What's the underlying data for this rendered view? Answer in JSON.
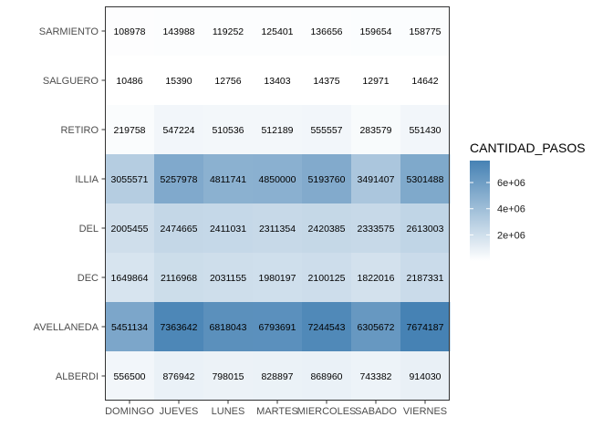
{
  "chart_data": {
    "type": "heatmap",
    "x_categories": [
      "DOMINGO",
      "JUEVES",
      "LUNES",
      "MARTES",
      "MIERCOLES",
      "SABADO",
      "VIERNES"
    ],
    "y_categories": [
      "SARMIENTO",
      "SALGUERO",
      "RETIRO",
      "ILLIA",
      "DEL",
      "DEC",
      "AVELLANEDA",
      "ALBERDI"
    ],
    "values": [
      [
        108978,
        143988,
        119252,
        125401,
        136656,
        159654,
        158775
      ],
      [
        10486,
        15390,
        12756,
        13403,
        14375,
        12971,
        14642
      ],
      [
        219758,
        547224,
        510536,
        512189,
        555557,
        283579,
        551430
      ],
      [
        3055571,
        5257978,
        4811741,
        4850000,
        5193760,
        3491407,
        5301488
      ],
      [
        2005455,
        2474665,
        2411031,
        2311354,
        2420385,
        2333575,
        2613003
      ],
      [
        1649864,
        2116968,
        2031155,
        1980197,
        2100125,
        1822016,
        2187331
      ],
      [
        5451134,
        7363642,
        6818043,
        6793691,
        7244543,
        6305672,
        7674187
      ],
      [
        556500,
        876942,
        798015,
        828897,
        868960,
        743382,
        914030
      ]
    ],
    "legend": {
      "title": "CANTIDAD_PASOS",
      "breaks": [
        2000000,
        4000000,
        6000000
      ],
      "break_labels": [
        "2e+06",
        "4e+06",
        "6e+06"
      ],
      "low_color": "#ffffff",
      "high_color": "#4682b4",
      "range": [
        10486,
        7674187
      ]
    },
    "title": "",
    "xlabel": "",
    "ylabel": ""
  }
}
